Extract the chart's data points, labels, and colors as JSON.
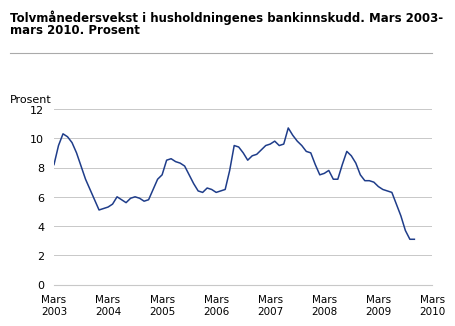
{
  "title_line1": "Tolvmånedersvekst i husholdningenes bankinnskudd. Mars 2003-",
  "title_line2": "mars 2010. Prosent",
  "ylabel": "Prosent",
  "line_color": "#1F3D8A",
  "background_color": "#ffffff",
  "grid_color": "#c8c8c8",
  "ylim": [
    0,
    12
  ],
  "yticks": [
    0,
    2,
    4,
    6,
    8,
    10,
    12
  ],
  "xtick_labels": [
    "Mars\n2003",
    "Mars\n2004",
    "Mars\n2005",
    "Mars\n2006",
    "Mars\n2007",
    "Mars\n2008",
    "Mars\n2009",
    "Mars\n2010"
  ],
  "xtick_positions": [
    0,
    12,
    24,
    36,
    48,
    60,
    72,
    84
  ],
  "values": [
    8.2,
    9.5,
    10.3,
    10.1,
    9.7,
    9.0,
    8.1,
    7.2,
    6.5,
    5.8,
    5.1,
    5.2,
    5.3,
    5.5,
    6.0,
    5.8,
    5.6,
    5.9,
    6.0,
    5.9,
    5.7,
    5.8,
    6.5,
    7.2,
    7.5,
    8.5,
    8.6,
    8.4,
    8.3,
    8.1,
    7.5,
    6.9,
    6.4,
    6.3,
    6.6,
    6.5,
    6.3,
    6.4,
    6.5,
    7.8,
    9.5,
    9.4,
    9.0,
    8.5,
    8.8,
    8.9,
    9.2,
    9.5,
    9.6,
    9.8,
    9.5,
    9.6,
    10.7,
    10.2,
    9.8,
    9.5,
    9.1,
    9.0,
    8.2,
    7.5,
    7.6,
    7.8,
    7.2,
    7.2,
    8.2,
    9.1,
    8.8,
    8.3,
    7.5,
    7.1,
    7.1,
    7.0,
    6.7,
    6.5,
    6.4,
    6.3,
    5.5,
    4.7,
    3.7,
    3.1,
    3.1
  ]
}
